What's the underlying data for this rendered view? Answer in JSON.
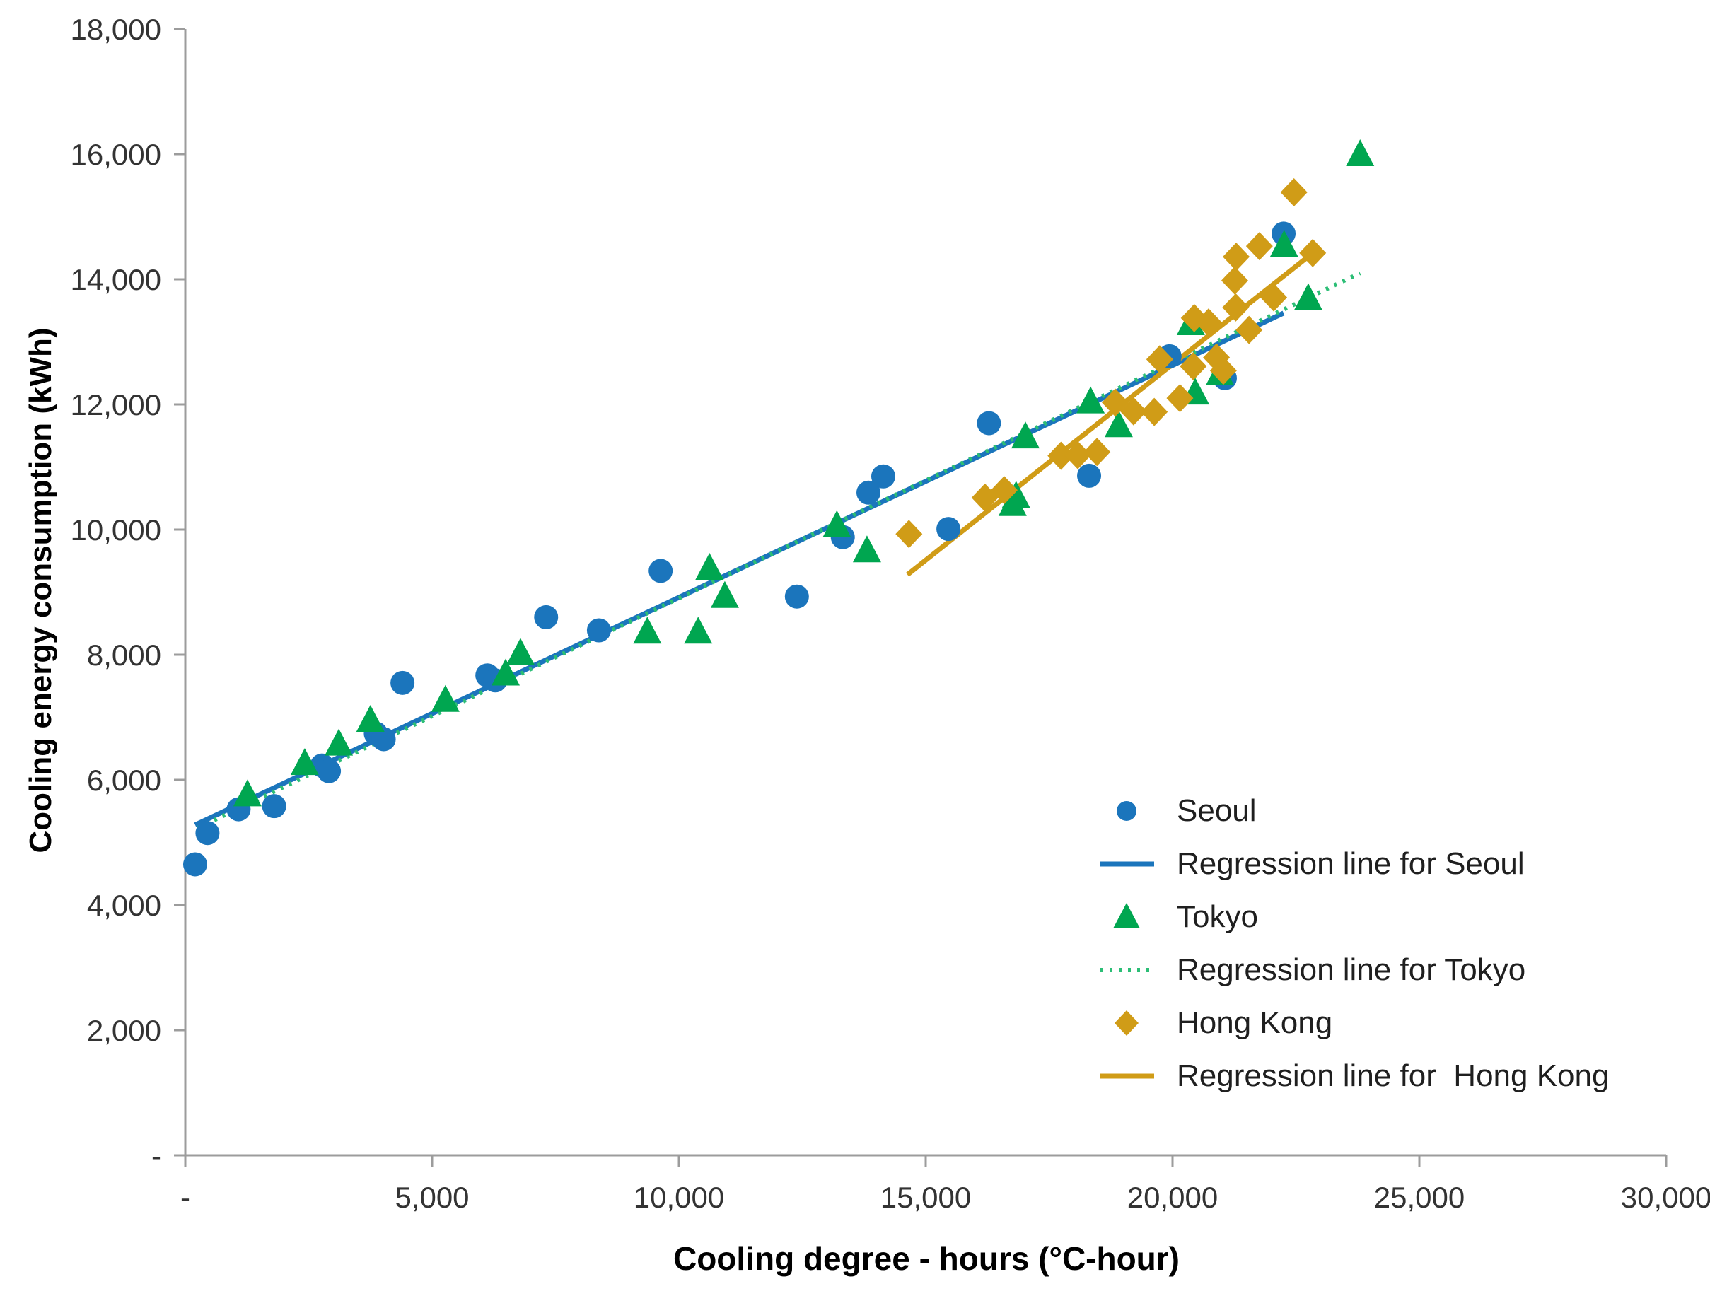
{
  "chart_data": {
    "type": "scatter",
    "title": "",
    "xlabel": "Cooling degree - hours (°C-hour)",
    "ylabel": "Cooling energy consumption (kWh)",
    "xlim": [
      0,
      30000
    ],
    "ylim": [
      0,
      18000
    ],
    "grid": false,
    "axis_color": "#9C9C9C",
    "tick_label_color": "#333333",
    "x_ticks": {
      "values": [
        0,
        5000,
        10000,
        15000,
        20000,
        25000,
        30000
      ],
      "labels": [
        "-",
        "5,000",
        "10,000",
        "15,000",
        "20,000",
        "25,000",
        "30,000"
      ]
    },
    "y_ticks": {
      "values": [
        0,
        2000,
        4000,
        6000,
        8000,
        10000,
        12000,
        14000,
        16000,
        18000
      ],
      "labels": [
        "-",
        "2,000",
        "4,000",
        "6,000",
        "8,000",
        "10,000",
        "12,000",
        "14,000",
        "16,000",
        "18,000"
      ]
    },
    "series": [
      {
        "name": "Seoul",
        "marker": "circle",
        "color": "#1B75BC",
        "points": [
          [
            200,
            4650
          ],
          [
            450,
            5150
          ],
          [
            1080,
            5530
          ],
          [
            1800,
            5580
          ],
          [
            2770,
            6230
          ],
          [
            2910,
            6140
          ],
          [
            3860,
            6740
          ],
          [
            4020,
            6650
          ],
          [
            4400,
            7550
          ],
          [
            6120,
            7670
          ],
          [
            6280,
            7590
          ],
          [
            7310,
            8600
          ],
          [
            8380,
            8390
          ],
          [
            9630,
            9340
          ],
          [
            12390,
            8930
          ],
          [
            13320,
            9880
          ],
          [
            13840,
            10590
          ],
          [
            14140,
            10850
          ],
          [
            15460,
            10010
          ],
          [
            16280,
            11700
          ],
          [
            18310,
            10860
          ],
          [
            19940,
            12770
          ],
          [
            21060,
            12420
          ],
          [
            22250,
            14730
          ]
        ]
      },
      {
        "name": "Tokyo",
        "marker": "triangle",
        "color": "#00A650",
        "points": [
          [
            1260,
            5770
          ],
          [
            2420,
            6270
          ],
          [
            3110,
            6580
          ],
          [
            3750,
            6960
          ],
          [
            5270,
            7280
          ],
          [
            6490,
            7700
          ],
          [
            6790,
            8030
          ],
          [
            9360,
            8370
          ],
          [
            10390,
            8370
          ],
          [
            10620,
            9390
          ],
          [
            10930,
            8940
          ],
          [
            13200,
            10070
          ],
          [
            13810,
            9670
          ],
          [
            16760,
            10410
          ],
          [
            16830,
            10540
          ],
          [
            17020,
            11490
          ],
          [
            18340,
            12050
          ],
          [
            18910,
            11670
          ],
          [
            20370,
            13300
          ],
          [
            20460,
            12190
          ],
          [
            20960,
            12500
          ],
          [
            22260,
            14550
          ],
          [
            22750,
            13700
          ],
          [
            23800,
            16000
          ]
        ]
      },
      {
        "name": "Hong Kong",
        "marker": "diamond",
        "color": "#D09C17",
        "points": [
          [
            14660,
            9930
          ],
          [
            16200,
            10510
          ],
          [
            16590,
            10630
          ],
          [
            17740,
            11180
          ],
          [
            18080,
            11190
          ],
          [
            18470,
            11240
          ],
          [
            18840,
            12030
          ],
          [
            19210,
            11890
          ],
          [
            19630,
            11880
          ],
          [
            19740,
            12720
          ],
          [
            20150,
            12100
          ],
          [
            20420,
            12610
          ],
          [
            20440,
            13380
          ],
          [
            20730,
            13310
          ],
          [
            20890,
            12750
          ],
          [
            21030,
            12540
          ],
          [
            21260,
            13980
          ],
          [
            21280,
            13550
          ],
          [
            21290,
            14360
          ],
          [
            21550,
            13190
          ],
          [
            21760,
            14530
          ],
          [
            22050,
            13710
          ],
          [
            22460,
            15390
          ],
          [
            22840,
            14420
          ]
        ]
      }
    ],
    "regression_lines": [
      {
        "name": "Regression line for Seoul",
        "color": "#1B75BC",
        "style": "solid",
        "from": [
          200,
          5280
        ],
        "to": [
          22250,
          13460
        ]
      },
      {
        "name": "Regression line for Tokyo",
        "color": "#2CBE76",
        "style": "dotted",
        "from": [
          250,
          5230
        ],
        "to": [
          23800,
          14100
        ]
      },
      {
        "name": "Regression line for  Hong Kong",
        "color": "#D09C17",
        "style": "solid",
        "from": [
          14630,
          9280
        ],
        "to": [
          22840,
          14420
        ]
      }
    ],
    "legend": {
      "items": [
        {
          "label": "Seoul",
          "swatch": "circle",
          "color": "#1B75BC"
        },
        {
          "label": "Regression line for Seoul",
          "swatch": "solid-line",
          "color": "#1B75BC"
        },
        {
          "label": "Tokyo",
          "swatch": "triangle",
          "color": "#00A650"
        },
        {
          "label": "Regression line for Tokyo",
          "swatch": "dotted-line",
          "color": "#2CBE76"
        },
        {
          "label": "Hong Kong",
          "swatch": "diamond",
          "color": "#D09C17"
        },
        {
          "label": "Regression line for  Hong Kong",
          "swatch": "solid-line",
          "color": "#D09C17"
        }
      ]
    }
  }
}
